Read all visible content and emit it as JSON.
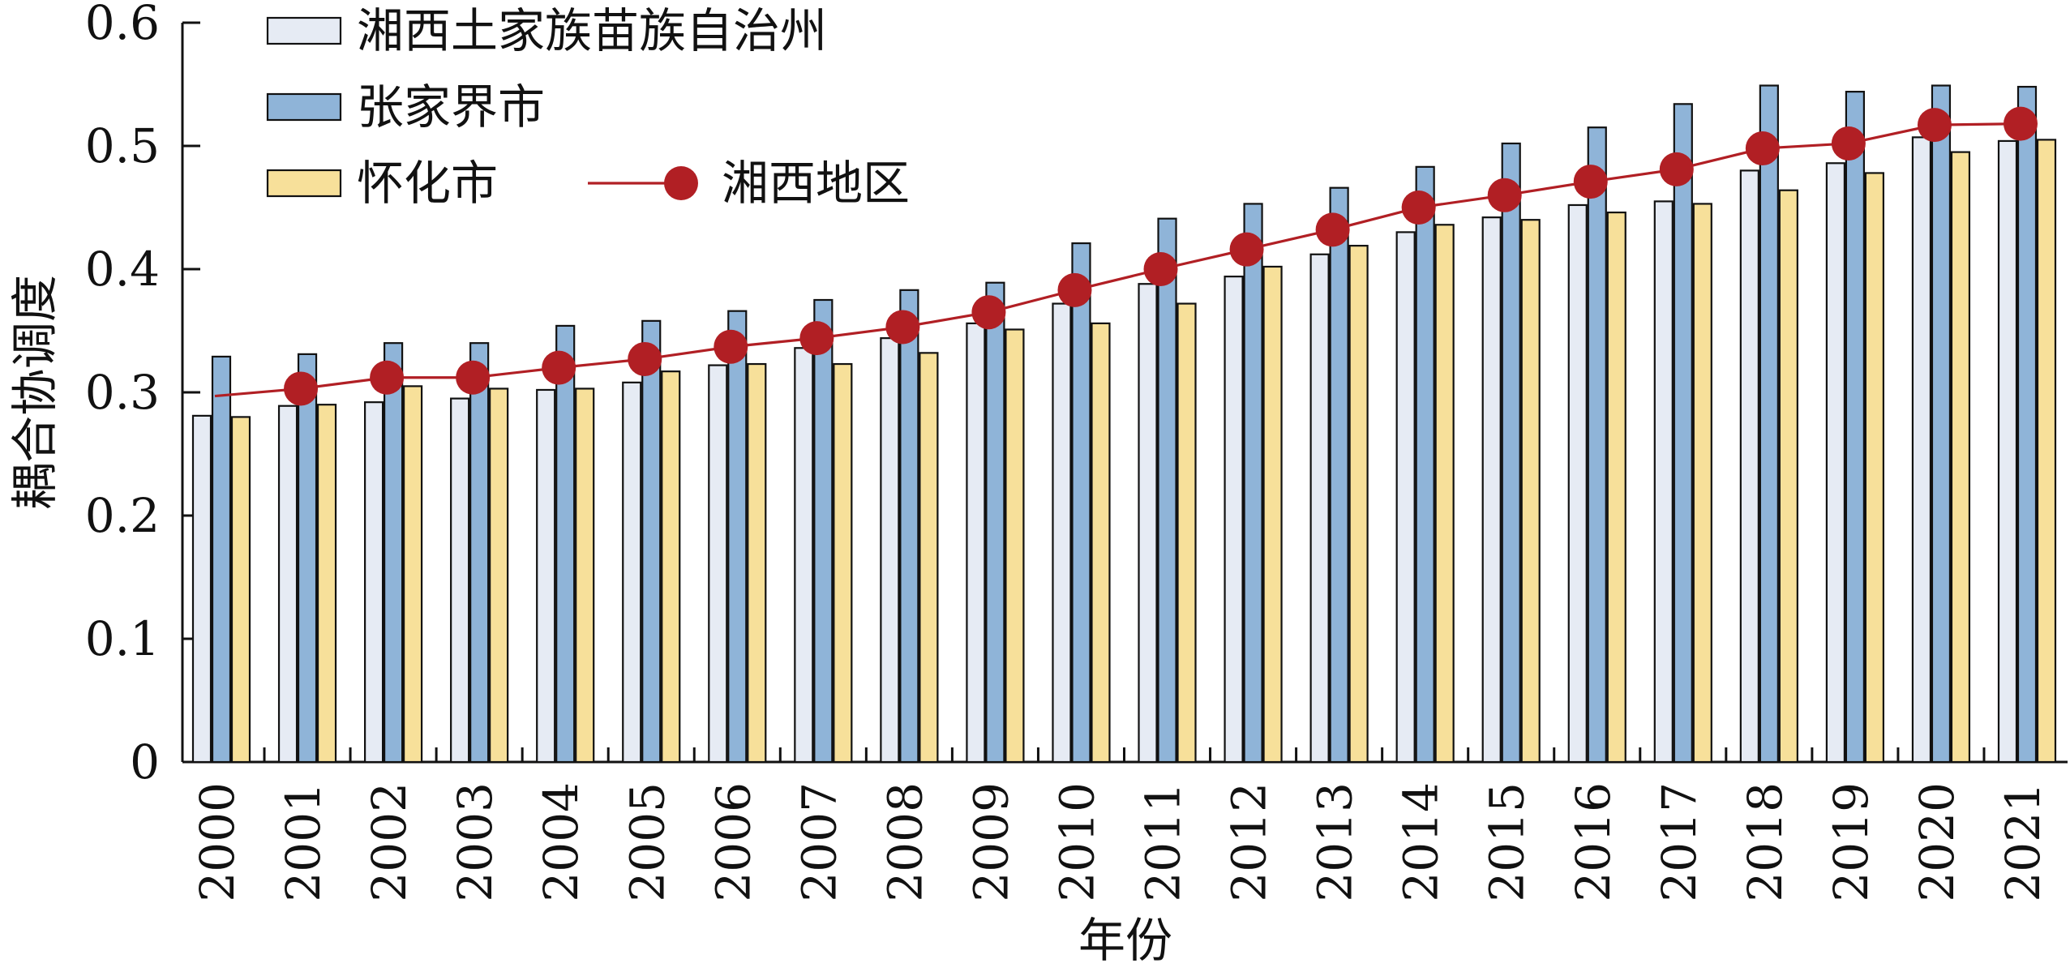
{
  "chart_data": {
    "type": "bar",
    "xlabel": "年份",
    "ylabel": "耦合协调度",
    "categories": [
      "2000",
      "2001",
      "2002",
      "2003",
      "2004",
      "2005",
      "2006",
      "2007",
      "2008",
      "2009",
      "2010",
      "2011",
      "2012",
      "2013",
      "2014",
      "2015",
      "2016",
      "2017",
      "2018",
      "2019",
      "2020",
      "2021"
    ],
    "ylim": [
      0,
      0.6
    ],
    "yticks": [
      "0",
      "0.1",
      "0.2",
      "0.3",
      "0.4",
      "0.5",
      "0.6"
    ],
    "legend_position": "top-left",
    "grid": false,
    "series": [
      {
        "name": "湘西土家族苗族自治州",
        "type": "bar",
        "color": "#e6ebf4",
        "values": [
          0.281,
          0.289,
          0.292,
          0.295,
          0.302,
          0.308,
          0.322,
          0.336,
          0.344,
          0.356,
          0.372,
          0.388,
          0.394,
          0.412,
          0.43,
          0.442,
          0.452,
          0.455,
          0.48,
          0.486,
          0.507,
          0.504
        ]
      },
      {
        "name": "张家界市",
        "type": "bar",
        "color": "#8fb4d8",
        "values": [
          0.329,
          0.331,
          0.34,
          0.34,
          0.354,
          0.358,
          0.366,
          0.375,
          0.383,
          0.389,
          0.421,
          0.441,
          0.453,
          0.466,
          0.483,
          0.502,
          0.515,
          0.534,
          0.549,
          0.544,
          0.549,
          0.548
        ]
      },
      {
        "name": "怀化市",
        "type": "bar",
        "color": "#f7e09a",
        "values": [
          0.28,
          0.29,
          0.305,
          0.303,
          0.303,
          0.317,
          0.323,
          0.323,
          0.332,
          0.351,
          0.356,
          0.372,
          0.402,
          0.419,
          0.436,
          0.44,
          0.446,
          0.453,
          0.464,
          0.478,
          0.495,
          0.505
        ]
      },
      {
        "name": "湘西地区",
        "type": "line",
        "color": "#b11f24",
        "x": [
          "2000",
          "2001",
          "2002",
          "2003",
          "2004",
          "2005",
          "2006",
          "2007",
          "2008",
          "2009",
          "2010",
          "2011",
          "2012",
          "2013",
          "2014",
          "2015",
          "2016",
          "2017",
          "2018",
          "2019",
          "2020",
          "2021"
        ],
        "values": [
          0.297,
          0.303,
          0.312,
          0.312,
          0.32,
          0.327,
          0.337,
          0.344,
          0.353,
          0.365,
          0.383,
          0.4,
          0.416,
          0.432,
          0.45,
          0.46,
          0.471,
          0.481,
          0.498,
          0.502,
          0.517,
          0.518
        ],
        "markers_from_index": 1
      }
    ]
  }
}
